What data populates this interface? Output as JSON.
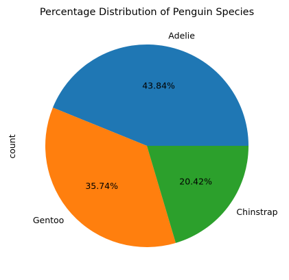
{
  "chart_data": {
    "type": "pie",
    "title": "Percentage Distribution of Penguin Species",
    "ylabel": "count",
    "start_angle_deg": 0,
    "direction": "counterclockwise",
    "slices": [
      {
        "label": "Adelie",
        "pct_label": "43.84%",
        "value": 43.84,
        "color": "#1f77b4"
      },
      {
        "label": "Gentoo",
        "pct_label": "35.74%",
        "value": 35.74,
        "color": "#ff7f0e"
      },
      {
        "label": "Chinstrap",
        "pct_label": "20.42%",
        "value": 20.42,
        "color": "#2ca02c"
      }
    ]
  }
}
